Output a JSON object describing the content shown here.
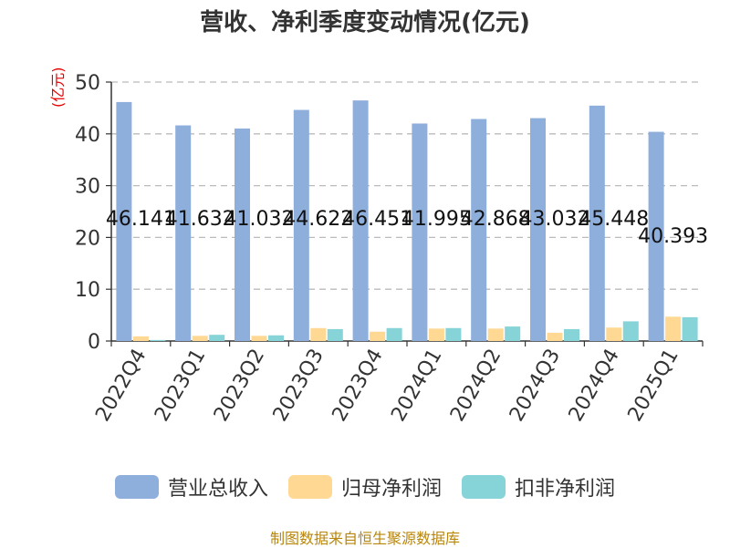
{
  "title": "营收、净利季度变动情况(亿元)",
  "unit": "(亿元)",
  "source": "制图数据来自恒生聚源数据库",
  "chart_data": {
    "type": "bar",
    "categories": [
      "2022Q4",
      "2023Q1",
      "2023Q2",
      "2023Q3",
      "2023Q4",
      "2024Q1",
      "2024Q2",
      "2024Q3",
      "2024Q4",
      "2025Q1"
    ],
    "ylim": [
      0,
      50
    ],
    "yticks": [
      0,
      10,
      20,
      30,
      40,
      50
    ],
    "grid": true,
    "legend_position": "bottom",
    "series": [
      {
        "name": "营业总收入",
        "color": "#8eaedc",
        "values": [
          46.141,
          41.632,
          41.032,
          44.622,
          46.451,
          41.995,
          42.868,
          43.032,
          45.448,
          40.393
        ],
        "labels": [
          "46.141",
          "41.632",
          "41.032",
          "44.622",
          "46.451",
          "41.995",
          "42.868",
          "43.032",
          "45.448",
          "40.393"
        ]
      },
      {
        "name": "归母净利润",
        "color": "#ffd993",
        "values": [
          0.9,
          1.0,
          1.0,
          2.5,
          1.8,
          2.4,
          2.4,
          1.6,
          2.6,
          4.7
        ]
      },
      {
        "name": "扣非净利润",
        "color": "#86d3d8",
        "values": [
          0.2,
          1.2,
          1.1,
          2.3,
          2.5,
          2.5,
          2.8,
          2.3,
          3.8,
          4.6
        ]
      }
    ]
  }
}
